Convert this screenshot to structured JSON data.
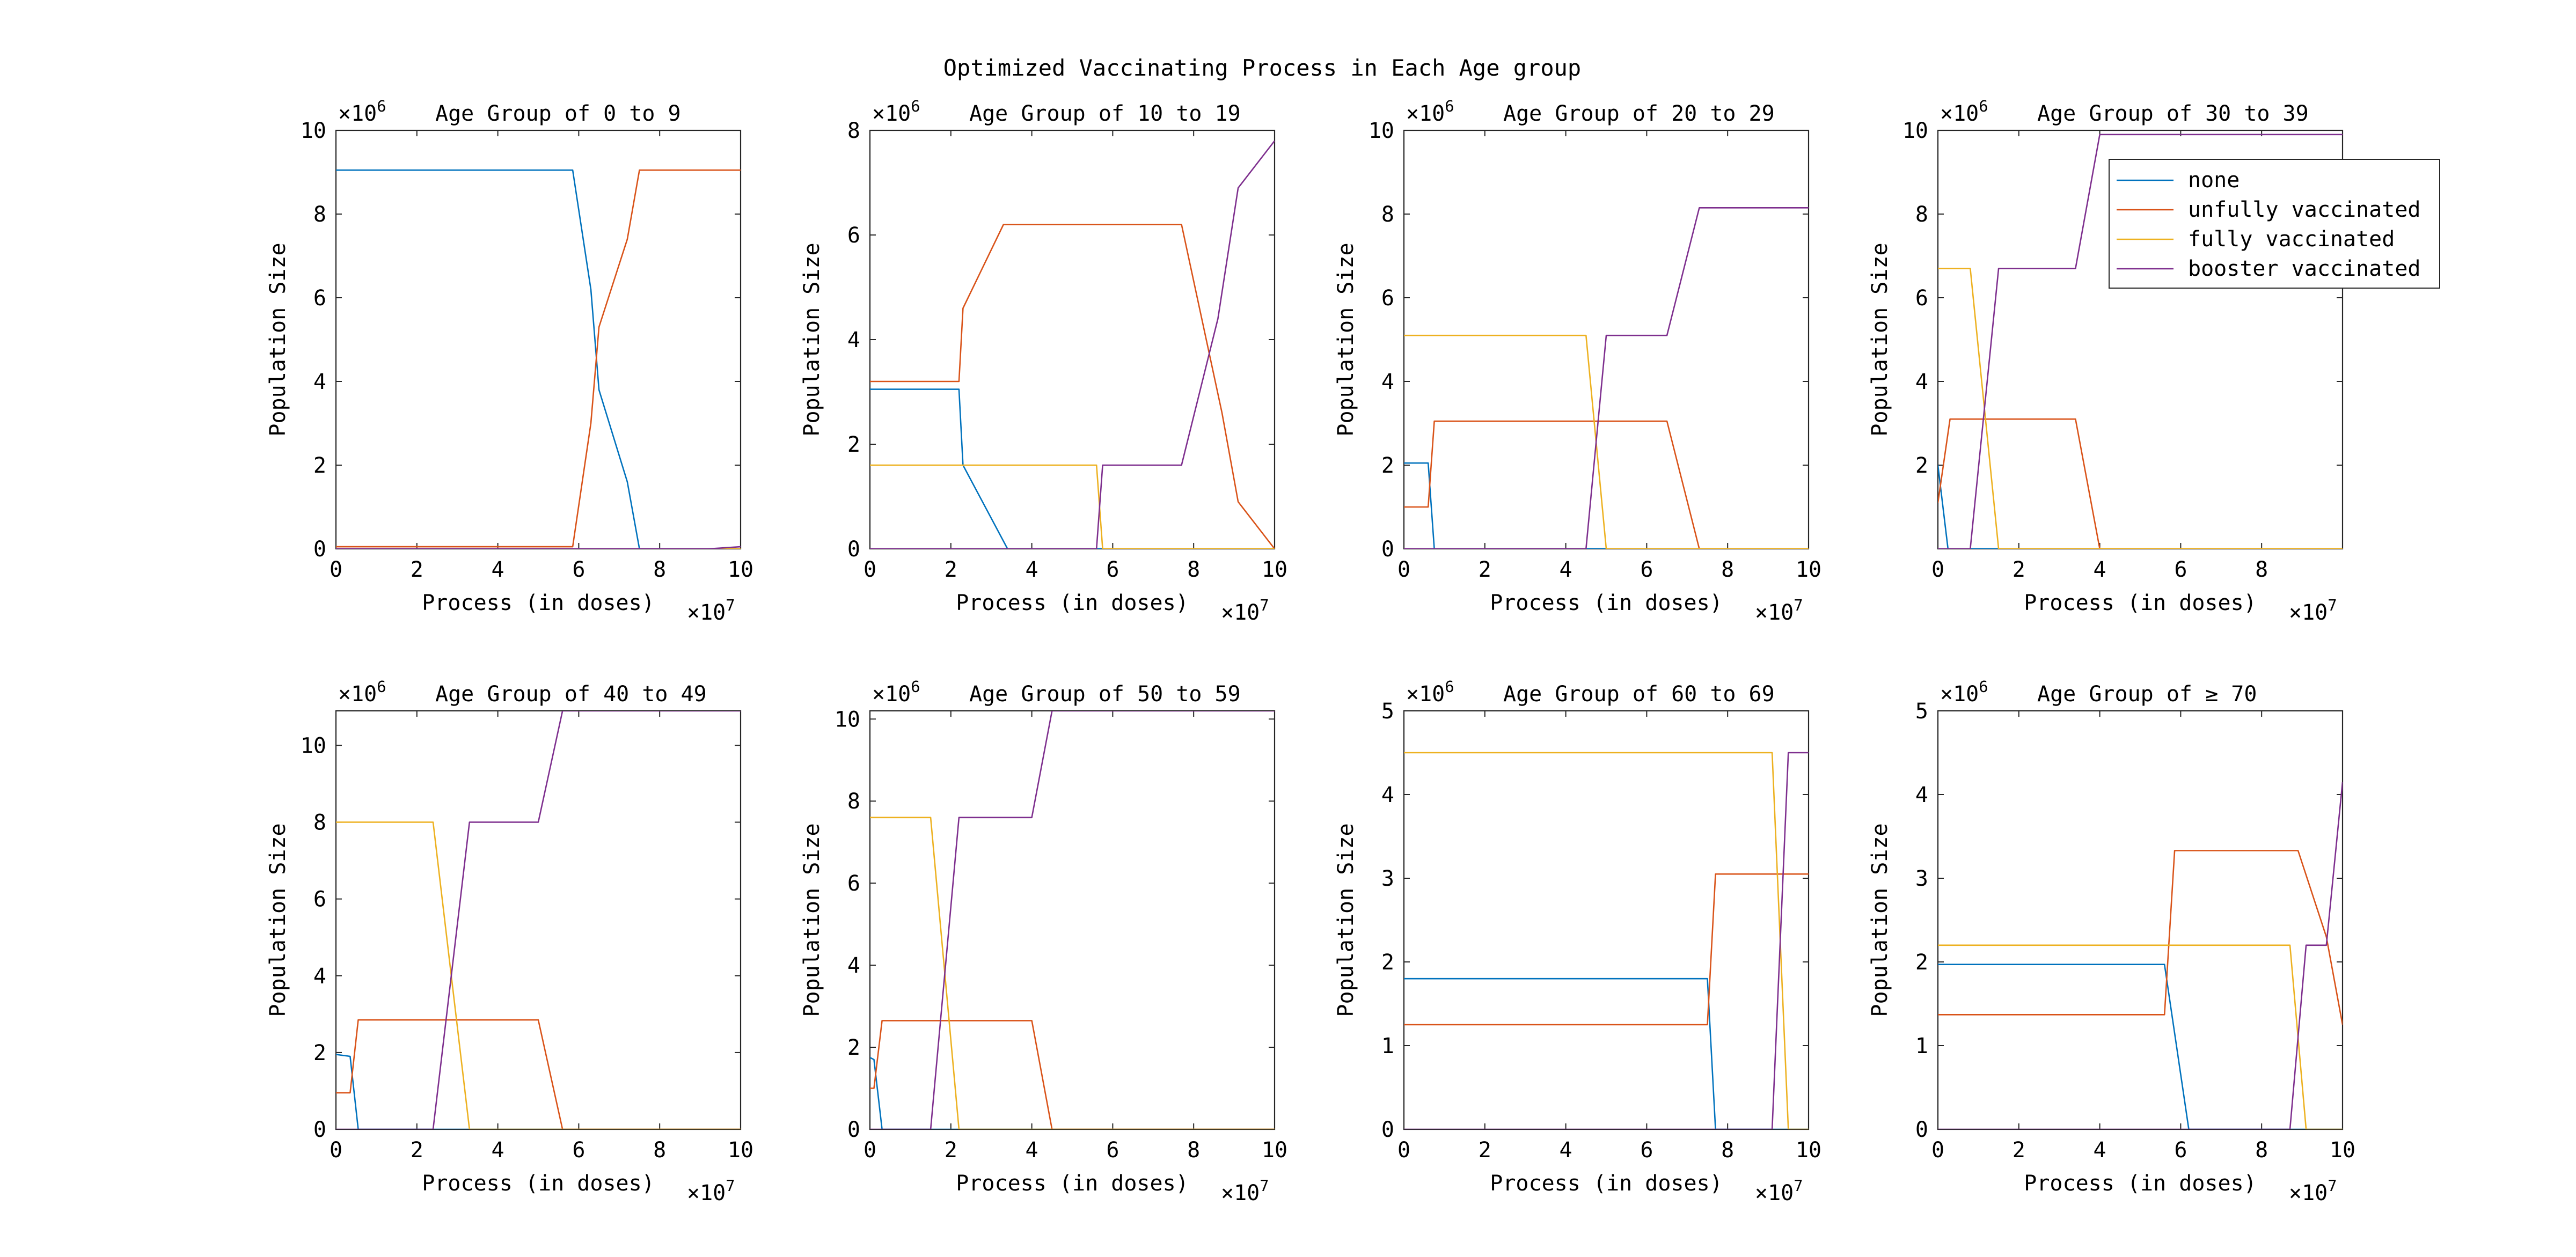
{
  "figure": {
    "title": "Optimized Vaccinating Process in Each Age group",
    "colors": {
      "none": "#0072BD",
      "unfully vaccinated": "#D95319",
      "fully vaccinated": "#EDB120",
      "booster vaccinated": "#7E2F8E"
    },
    "legend": {
      "placement": "top-right of panel 4",
      "entries": [
        "none",
        "unfully vaccinated",
        "fully vaccinated",
        "booster vaccinated"
      ]
    }
  },
  "chart_data": [
    {
      "type": "line",
      "title": "Age Group of 0 to 9",
      "xlabel": "Process (in doses)",
      "ylabel": "Population Size",
      "x_multiplier": "×10^7",
      "y_multiplier": "×10^6",
      "xlim": [
        0,
        10
      ],
      "ylim": [
        0,
        10
      ],
      "xticks": [
        0,
        2,
        4,
        6,
        8,
        10
      ],
      "yticks": [
        0,
        2,
        4,
        6,
        8,
        10
      ],
      "series": [
        {
          "name": "none",
          "x": [
            0,
            5.85,
            6.3,
            6.5,
            7.2,
            7.5,
            10
          ],
          "y": [
            9.05,
            9.05,
            6.2,
            3.8,
            1.6,
            0,
            0
          ]
        },
        {
          "name": "unfully vaccinated",
          "x": [
            0,
            5.85,
            6.3,
            6.5,
            7.2,
            7.5,
            10
          ],
          "y": [
            0.05,
            0.05,
            3.0,
            5.3,
            7.4,
            9.05,
            9.05
          ]
        },
        {
          "name": "fully vaccinated",
          "x": [
            0,
            10
          ],
          "y": [
            0,
            0
          ]
        },
        {
          "name": "booster vaccinated",
          "x": [
            0,
            9.2,
            10
          ],
          "y": [
            0,
            0,
            0.05
          ]
        }
      ]
    },
    {
      "type": "line",
      "title": "Age Group of 10 to 19",
      "xlabel": "Process (in doses)",
      "ylabel": "Population Size",
      "x_multiplier": "×10^7",
      "y_multiplier": "×10^6",
      "xlim": [
        0,
        10
      ],
      "ylim": [
        0,
        8
      ],
      "xticks": [
        0,
        2,
        4,
        6,
        8,
        10
      ],
      "yticks": [
        0,
        2,
        4,
        6,
        8
      ],
      "series": [
        {
          "name": "none",
          "x": [
            0,
            2.2,
            2.3,
            3.4,
            10
          ],
          "y": [
            3.05,
            3.05,
            1.6,
            0,
            0
          ]
        },
        {
          "name": "unfully vaccinated",
          "x": [
            0,
            2.2,
            2.3,
            3.3,
            7.7,
            8.7,
            9.1,
            10
          ],
          "y": [
            3.2,
            3.2,
            4.6,
            6.2,
            6.2,
            2.6,
            0.9,
            0
          ]
        },
        {
          "name": "fully vaccinated",
          "x": [
            0,
            5.6,
            5.75,
            10
          ],
          "y": [
            1.6,
            1.6,
            0,
            0
          ]
        },
        {
          "name": "booster vaccinated",
          "x": [
            0,
            5.6,
            5.75,
            7.7,
            8.6,
            9.1,
            10
          ],
          "y": [
            0,
            0,
            1.6,
            1.6,
            4.4,
            6.9,
            7.8
          ]
        }
      ]
    },
    {
      "type": "line",
      "title": "Age Group of 20 to 29",
      "xlabel": "Process (in doses)",
      "ylabel": "Population Size",
      "x_multiplier": "×10^7",
      "y_multiplier": "×10^6",
      "xlim": [
        0,
        10
      ],
      "ylim": [
        0,
        10
      ],
      "xticks": [
        0,
        2,
        4,
        6,
        8,
        10
      ],
      "yticks": [
        0,
        2,
        4,
        6,
        8,
        10
      ],
      "series": [
        {
          "name": "none",
          "x": [
            0,
            0.6,
            0.75,
            10
          ],
          "y": [
            2.05,
            2.05,
            0,
            0
          ]
        },
        {
          "name": "unfully vaccinated",
          "x": [
            0,
            0.6,
            0.75,
            6.5,
            7.3,
            10
          ],
          "y": [
            1.0,
            1.0,
            3.05,
            3.05,
            0,
            0
          ]
        },
        {
          "name": "fully vaccinated",
          "x": [
            0,
            4.5,
            5.0,
            10
          ],
          "y": [
            5.1,
            5.1,
            0,
            0
          ]
        },
        {
          "name": "booster vaccinated",
          "x": [
            0,
            4.5,
            5.0,
            6.5,
            7.3,
            10
          ],
          "y": [
            0,
            0,
            5.1,
            5.1,
            8.15,
            8.15
          ]
        }
      ]
    },
    {
      "type": "line",
      "title": "Age Group of 30 to 39",
      "xlabel": "Process (in doses)",
      "ylabel": "Population Size",
      "x_multiplier": "×10^7",
      "y_multiplier": "×10^6",
      "xlim": [
        0,
        10
      ],
      "ylim": [
        0,
        10
      ],
      "xticks": [
        0,
        2,
        4,
        6,
        8
      ],
      "yticks": [
        2,
        4,
        6,
        8,
        10
      ],
      "series": [
        {
          "name": "none",
          "x": [
            0,
            0.25,
            10
          ],
          "y": [
            2.0,
            0,
            0
          ]
        },
        {
          "name": "unfully vaccinated",
          "x": [
            0,
            0.3,
            3.4,
            4.0,
            10
          ],
          "y": [
            1.1,
            3.1,
            3.1,
            0,
            0
          ]
        },
        {
          "name": "fully vaccinated",
          "x": [
            0,
            0.8,
            1.5,
            10
          ],
          "y": [
            6.7,
            6.7,
            0,
            0
          ]
        },
        {
          "name": "booster vaccinated",
          "x": [
            0,
            0.8,
            1.5,
            3.4,
            4.0,
            10
          ],
          "y": [
            0,
            0,
            6.7,
            6.7,
            9.9,
            9.9
          ]
        }
      ]
    },
    {
      "type": "line",
      "title": "Age Group of 40 to 49",
      "xlabel": "Process (in doses)",
      "ylabel": "Population Size",
      "x_multiplier": "×10^7",
      "y_multiplier": "×10^6",
      "xlim": [
        0,
        10
      ],
      "ylim": [
        0,
        10.9
      ],
      "xticks": [
        0,
        2,
        4,
        6,
        8,
        10
      ],
      "yticks": [
        0,
        2,
        4,
        6,
        8,
        10
      ],
      "series": [
        {
          "name": "none",
          "x": [
            0,
            0.35,
            0.55,
            10
          ],
          "y": [
            1.95,
            1.9,
            0,
            0
          ]
        },
        {
          "name": "unfully vaccinated",
          "x": [
            0,
            0.35,
            0.55,
            5.0,
            5.6,
            10
          ],
          "y": [
            0.95,
            0.95,
            2.85,
            2.85,
            0,
            0
          ]
        },
        {
          "name": "fully vaccinated",
          "x": [
            0,
            2.4,
            3.3,
            10
          ],
          "y": [
            8.0,
            8.0,
            0,
            0
          ]
        },
        {
          "name": "booster vaccinated",
          "x": [
            0,
            2.4,
            3.3,
            5.0,
            5.6,
            10
          ],
          "y": [
            0,
            0,
            8.0,
            8.0,
            10.9,
            10.9
          ]
        }
      ]
    },
    {
      "type": "line",
      "title": "Age Group of 50 to 59",
      "xlabel": "Process (in doses)",
      "ylabel": "Population Size",
      "x_multiplier": "×10^7",
      "y_multiplier": "×10^6",
      "xlim": [
        0,
        10
      ],
      "ylim": [
        0,
        10.2
      ],
      "xticks": [
        0,
        2,
        4,
        6,
        8,
        10
      ],
      "yticks": [
        0,
        2,
        4,
        6,
        8,
        10
      ],
      "series": [
        {
          "name": "none",
          "x": [
            0,
            0.1,
            0.3,
            10
          ],
          "y": [
            1.75,
            1.7,
            0,
            0
          ]
        },
        {
          "name": "unfully vaccinated",
          "x": [
            0,
            0.1,
            0.3,
            4.0,
            4.5,
            10
          ],
          "y": [
            1.0,
            1.0,
            2.65,
            2.65,
            0,
            0
          ]
        },
        {
          "name": "fully vaccinated",
          "x": [
            0,
            1.5,
            2.2,
            10
          ],
          "y": [
            7.6,
            7.6,
            0,
            0
          ]
        },
        {
          "name": "booster vaccinated",
          "x": [
            0,
            1.5,
            2.2,
            4.0,
            4.5,
            10
          ],
          "y": [
            0,
            0,
            7.6,
            7.6,
            10.2,
            10.2
          ]
        }
      ]
    },
    {
      "type": "line",
      "title": "Age Group of 60 to 69",
      "xlabel": "Process (in doses)",
      "ylabel": "Population Size",
      "x_multiplier": "×10^7",
      "y_multiplier": "×10^6",
      "xlim": [
        0,
        10
      ],
      "ylim": [
        0,
        5
      ],
      "xticks": [
        0,
        2,
        4,
        6,
        8,
        10
      ],
      "yticks": [
        0,
        1,
        2,
        3,
        4,
        5
      ],
      "series": [
        {
          "name": "none",
          "x": [
            0,
            7.5,
            7.7,
            10
          ],
          "y": [
            1.8,
            1.8,
            0,
            0
          ]
        },
        {
          "name": "unfully vaccinated",
          "x": [
            0,
            7.5,
            7.7,
            10
          ],
          "y": [
            1.25,
            1.25,
            3.05,
            3.05
          ]
        },
        {
          "name": "fully vaccinated",
          "x": [
            0,
            9.1,
            9.5,
            10
          ],
          "y": [
            4.5,
            4.5,
            0,
            0
          ]
        },
        {
          "name": "booster vaccinated",
          "x": [
            0,
            9.1,
            9.5,
            10
          ],
          "y": [
            0,
            0,
            4.5,
            4.5
          ]
        }
      ]
    },
    {
      "type": "line",
      "title": "Age Group of ≥ 70",
      "xlabel": "Process (in doses)",
      "ylabel": "Population Size",
      "x_multiplier": "×10^7",
      "y_multiplier": "×10^6",
      "xlim": [
        0,
        10
      ],
      "ylim": [
        0,
        5
      ],
      "xticks": [
        0,
        2,
        4,
        6,
        8,
        10
      ],
      "yticks": [
        0,
        1,
        2,
        3,
        4,
        5
      ],
      "series": [
        {
          "name": "none",
          "x": [
            0,
            5.6,
            6.2,
            10
          ],
          "y": [
            1.97,
            1.97,
            0,
            0
          ]
        },
        {
          "name": "unfully vaccinated",
          "x": [
            0,
            5.6,
            5.85,
            8.9,
            9.6,
            10
          ],
          "y": [
            1.37,
            1.37,
            3.33,
            3.33,
            2.3,
            1.25
          ]
        },
        {
          "name": "fully vaccinated",
          "x": [
            0,
            8.7,
            9.1,
            10
          ],
          "y": [
            2.2,
            2.2,
            0,
            0
          ]
        },
        {
          "name": "booster vaccinated",
          "x": [
            0,
            8.7,
            9.1,
            9.6,
            10
          ],
          "y": [
            0,
            0,
            2.2,
            2.2,
            4.15
          ]
        }
      ]
    }
  ]
}
